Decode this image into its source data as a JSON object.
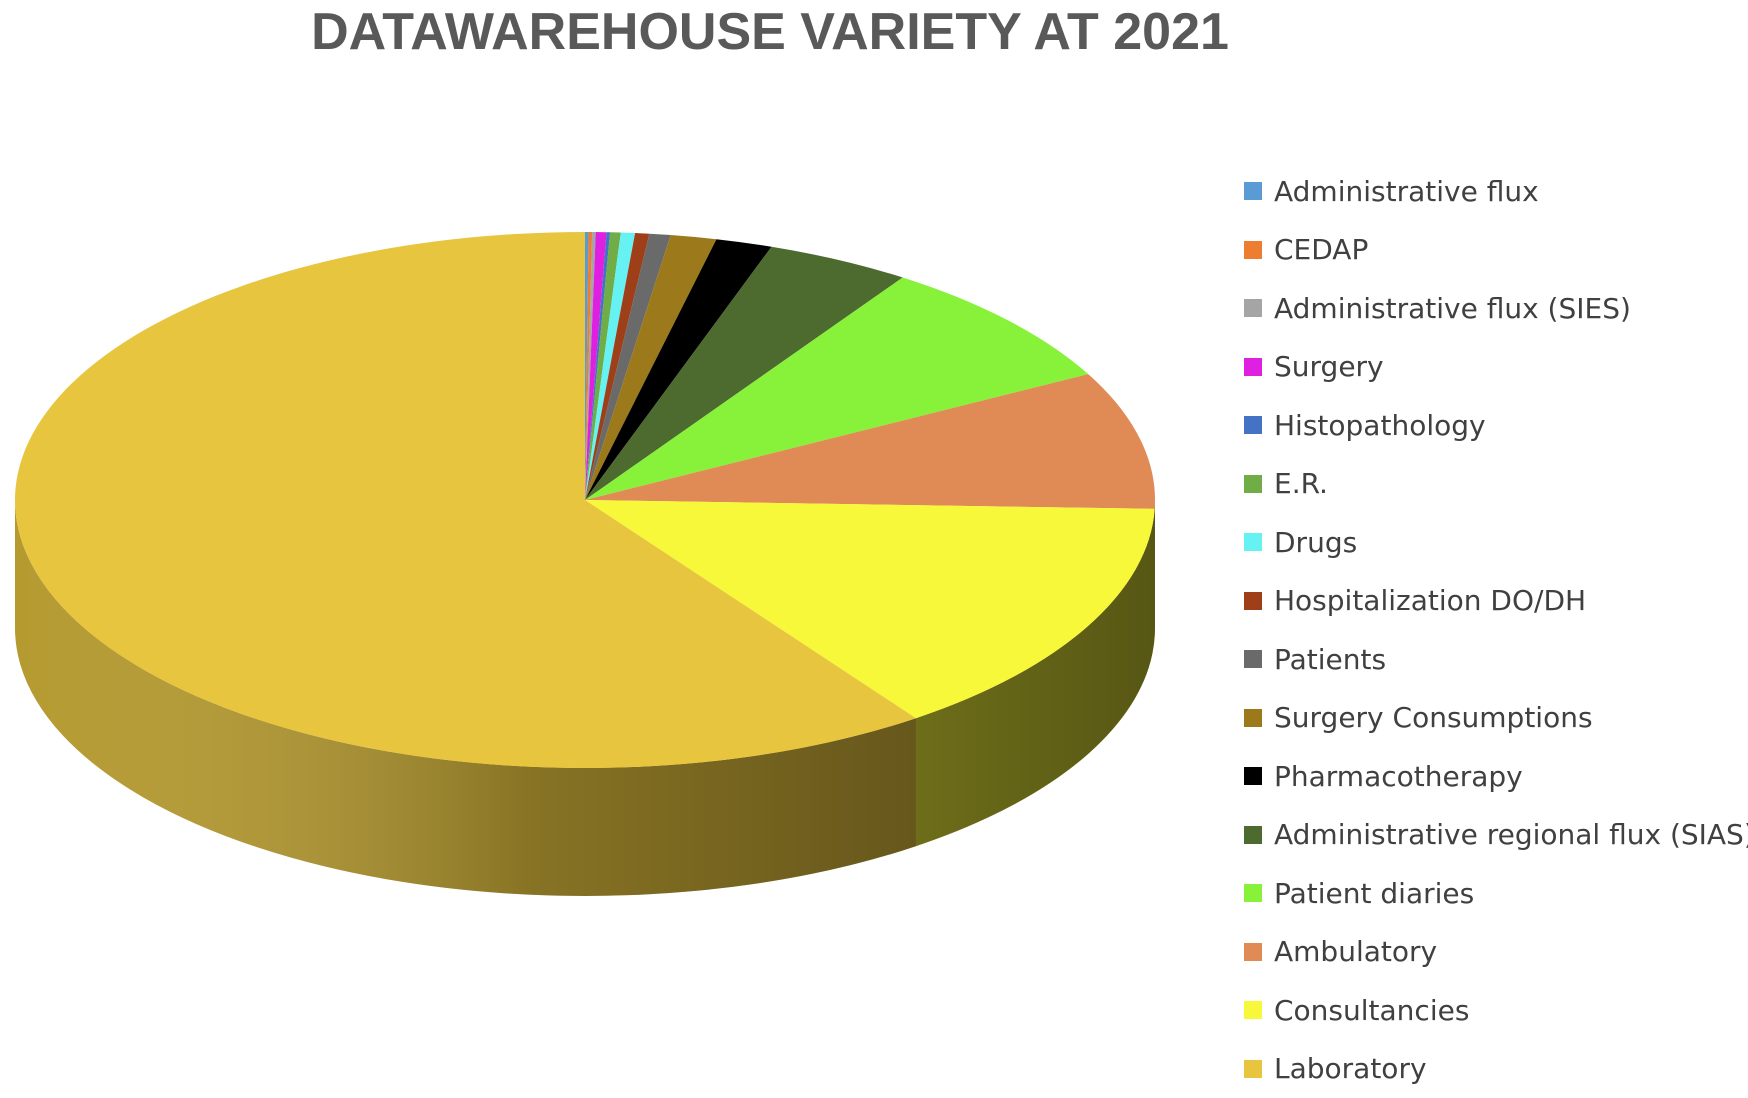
{
  "chart_data": {
    "type": "pie",
    "title": "DATAWAREHOUSE VARIETY AT 2021",
    "legend_position": "right",
    "three_d": true,
    "slices": [
      {
        "label": "Administrative flux",
        "value": 0.1,
        "color": "#5B9BD5"
      },
      {
        "label": "CEDAP",
        "value": 0.1,
        "color": "#ED7D31"
      },
      {
        "label": "Administrative flux (SIES)",
        "value": 0.1,
        "color": "#A5A5A5"
      },
      {
        "label": "Surgery",
        "value": 0.3,
        "color": "#E020E0"
      },
      {
        "label": "Histopathology",
        "value": 0.1,
        "color": "#4472C4"
      },
      {
        "label": "E.R.",
        "value": 0.3,
        "color": "#70AD47"
      },
      {
        "label": "Drugs",
        "value": 0.4,
        "color": "#66F2F2"
      },
      {
        "label": "Hospitalization DO/DH",
        "value": 0.4,
        "color": "#9E3F1A"
      },
      {
        "label": "Patients",
        "value": 0.6,
        "color": "#6A6A6A"
      },
      {
        "label": "Surgery Consumptions",
        "value": 1.3,
        "color": "#9C7A1C"
      },
      {
        "label": "Pharmacotherapy",
        "value": 1.6,
        "color": "#000000"
      },
      {
        "label": "Administrative regional flux (SIAS)",
        "value": 4.1,
        "color": "#4D6B2E"
      },
      {
        "label": "Patient diaries",
        "value": 7.8,
        "color": "#88F23A"
      },
      {
        "label": "Ambulatory",
        "value": 8.3,
        "color": "#E08A55"
      },
      {
        "label": "Consultancies",
        "value": 14.6,
        "color": "#F8F83A"
      },
      {
        "label": "Laboratory",
        "value": 59.8,
        "color": "#E8C53E"
      }
    ]
  }
}
